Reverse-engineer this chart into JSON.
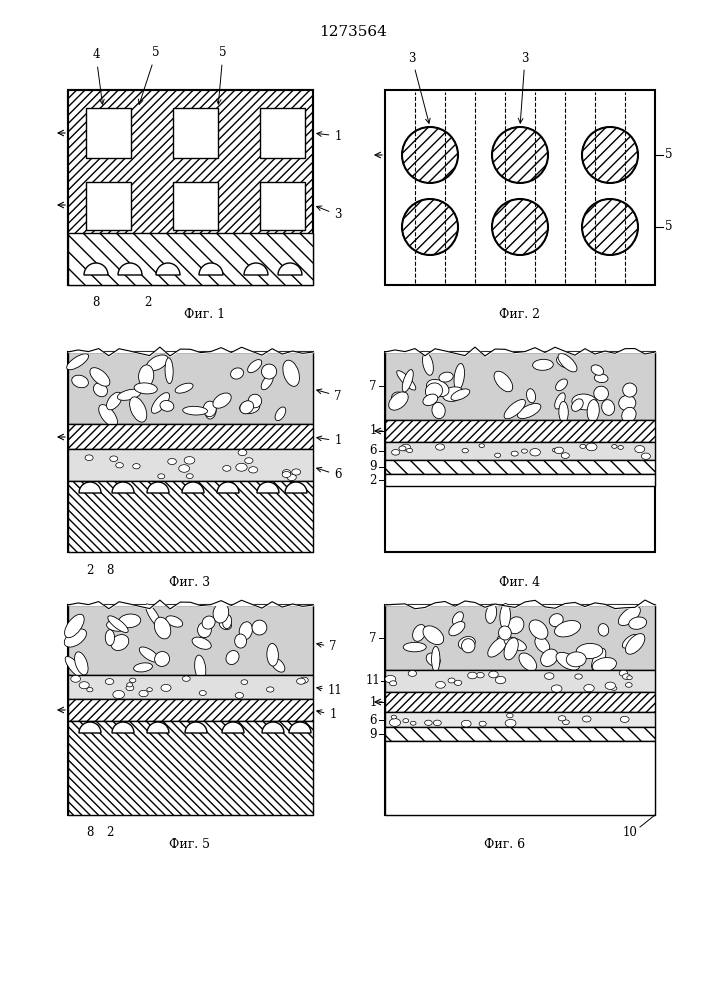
{
  "title": "1273564",
  "bg_color": "#ffffff",
  "fig_labels": [
    "Фиг. 1",
    "Фиг. 2",
    "Фиг. 3",
    "Фиг. 4",
    "Фиг. 5",
    "Фиг. 6"
  ]
}
